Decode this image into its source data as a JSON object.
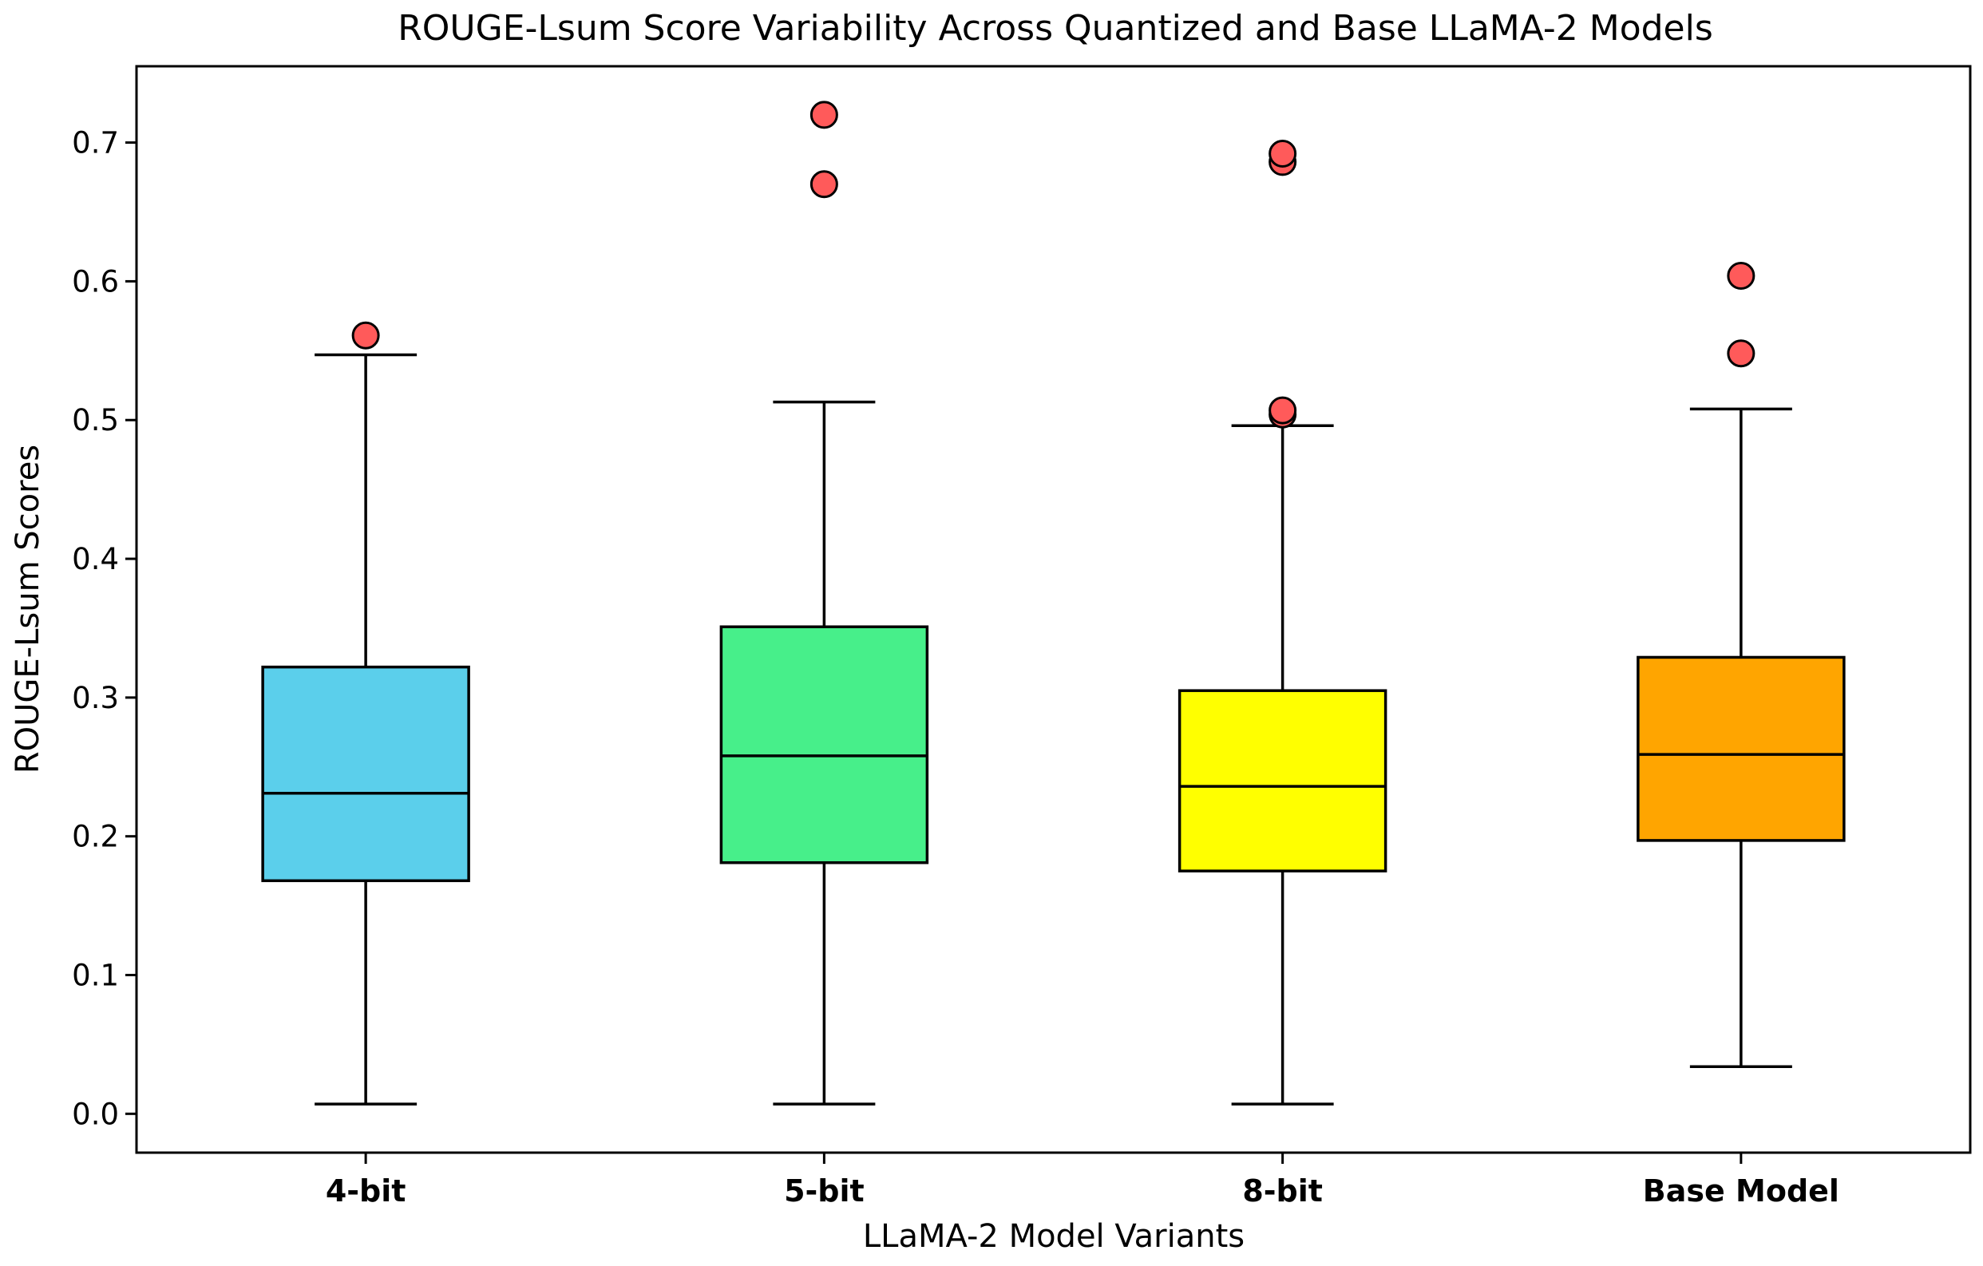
{
  "chart_data": {
    "type": "boxplot",
    "title": "ROUGE-Lsum Score Variability Across Quantized and Base LLaMA-2 Models",
    "xlabel": "LLaMA-2 Model Variants",
    "ylabel": "ROUGE-Lsum Scores",
    "ylim": [
      -0.028,
      0.755
    ],
    "yticks": [
      0.0,
      0.1,
      0.2,
      0.3,
      0.4,
      0.5,
      0.6,
      0.7
    ],
    "ytick_labels": [
      "0.0",
      "0.1",
      "0.2",
      "0.3",
      "0.4",
      "0.5",
      "0.6",
      "0.7"
    ],
    "grid": false,
    "outlier_color": "#ff5a5a",
    "series": [
      {
        "name": "4-bit",
        "color": "#5bcfeb",
        "whisker_low": 0.007,
        "q1": 0.168,
        "median": 0.231,
        "q3": 0.322,
        "whisker_high": 0.547,
        "outliers": [
          0.561
        ]
      },
      {
        "name": "5-bit",
        "color": "#47ef8a",
        "whisker_low": 0.007,
        "q1": 0.181,
        "median": 0.258,
        "q3": 0.351,
        "whisker_high": 0.513,
        "outliers": [
          0.67,
          0.72
        ]
      },
      {
        "name": "8-bit",
        "color": "#ffff00",
        "whisker_low": 0.007,
        "q1": 0.175,
        "median": 0.236,
        "q3": 0.305,
        "whisker_high": 0.496,
        "outliers": [
          0.504,
          0.507,
          0.686,
          0.692
        ]
      },
      {
        "name": "Base Model",
        "color": "#ffa500",
        "whisker_low": 0.034,
        "q1": 0.197,
        "median": 0.259,
        "q3": 0.329,
        "whisker_high": 0.508,
        "outliers": [
          0.548,
          0.604
        ]
      }
    ]
  }
}
